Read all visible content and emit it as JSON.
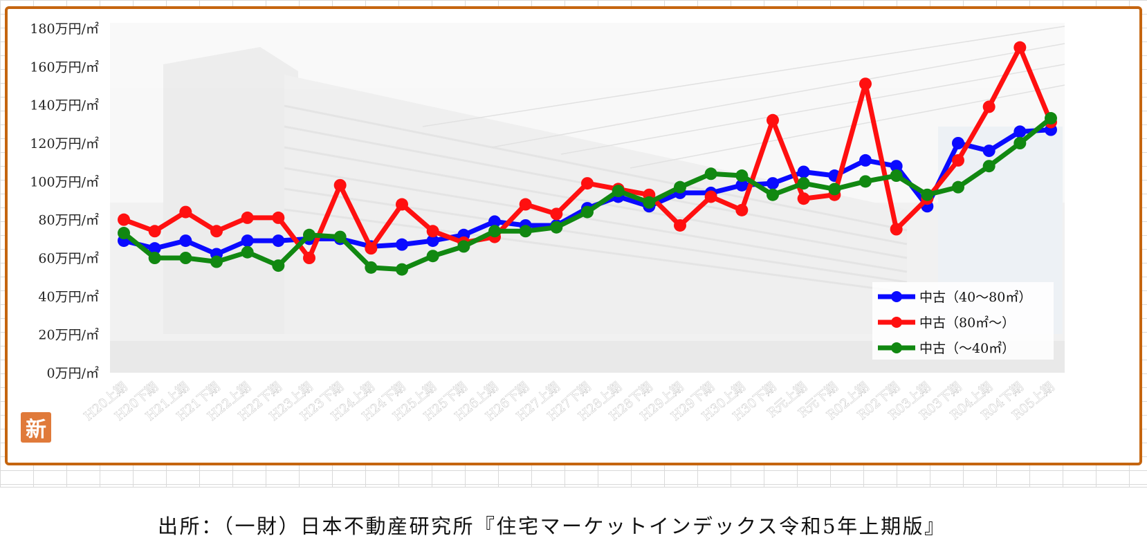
{
  "badge": "新",
  "source": "出所：（一財）日本不動産研究所『住宅マーケットインデックス令和5年上期版』",
  "chart_data": {
    "type": "line",
    "y_unit_suffix": "万円/㎡",
    "ylim": [
      0,
      180
    ],
    "y_ticks": [
      "0万円/㎡",
      "20万円/㎡",
      "40万円/㎡",
      "60万円/㎡",
      "80万円/㎡",
      "100万円/㎡",
      "120万円/㎡",
      "140万円/㎡",
      "160万円/㎡",
      "180万円/㎡"
    ],
    "categories": [
      "H20上期",
      "H20下期",
      "H21上期",
      "H21下期",
      "H22上期",
      "H22下期",
      "H23上期",
      "H23下期",
      "H24上期",
      "H24下期",
      "H25上期",
      "H25下期",
      "H26上期",
      "H26下期",
      "H27上期",
      "H27下期",
      "H28上期",
      "H28下期",
      "H29上期",
      "H29下期",
      "H30上期",
      "H30下期",
      "R元上期",
      "R元下期",
      "R02上期",
      "R02下期",
      "R03上期",
      "R03下期",
      "R04上期",
      "R04下期",
      "R05上期"
    ],
    "grid": true,
    "legend_position": "bottom-right",
    "series": [
      {
        "name": "中古（40～80㎡）",
        "color": "#0a0aff",
        "values": [
          69,
          65,
          69,
          62,
          69,
          69,
          70,
          70,
          66,
          67,
          69,
          72,
          79,
          77,
          77,
          86,
          92,
          87,
          94,
          94,
          98,
          99,
          105,
          103,
          111,
          108,
          87,
          120,
          116,
          126,
          127
        ]
      },
      {
        "name": "中古（80㎡～）",
        "color": "#ff1010",
        "values": [
          80,
          74,
          84,
          74,
          81,
          81,
          60,
          98,
          65,
          88,
          74,
          68,
          71,
          88,
          83,
          99,
          96,
          93,
          77,
          92,
          85,
          132,
          91,
          93,
          151,
          75,
          91,
          111,
          139,
          170,
          131
        ]
      },
      {
        "name": "中古（～40㎡）",
        "color": "#118811",
        "values": [
          73,
          60,
          60,
          58,
          63,
          56,
          72,
          71,
          55,
          54,
          61,
          66,
          74,
          74,
          76,
          84,
          95,
          89,
          97,
          104,
          103,
          93,
          99,
          96,
          100,
          103,
          93,
          97,
          108,
          120,
          133
        ]
      }
    ]
  }
}
